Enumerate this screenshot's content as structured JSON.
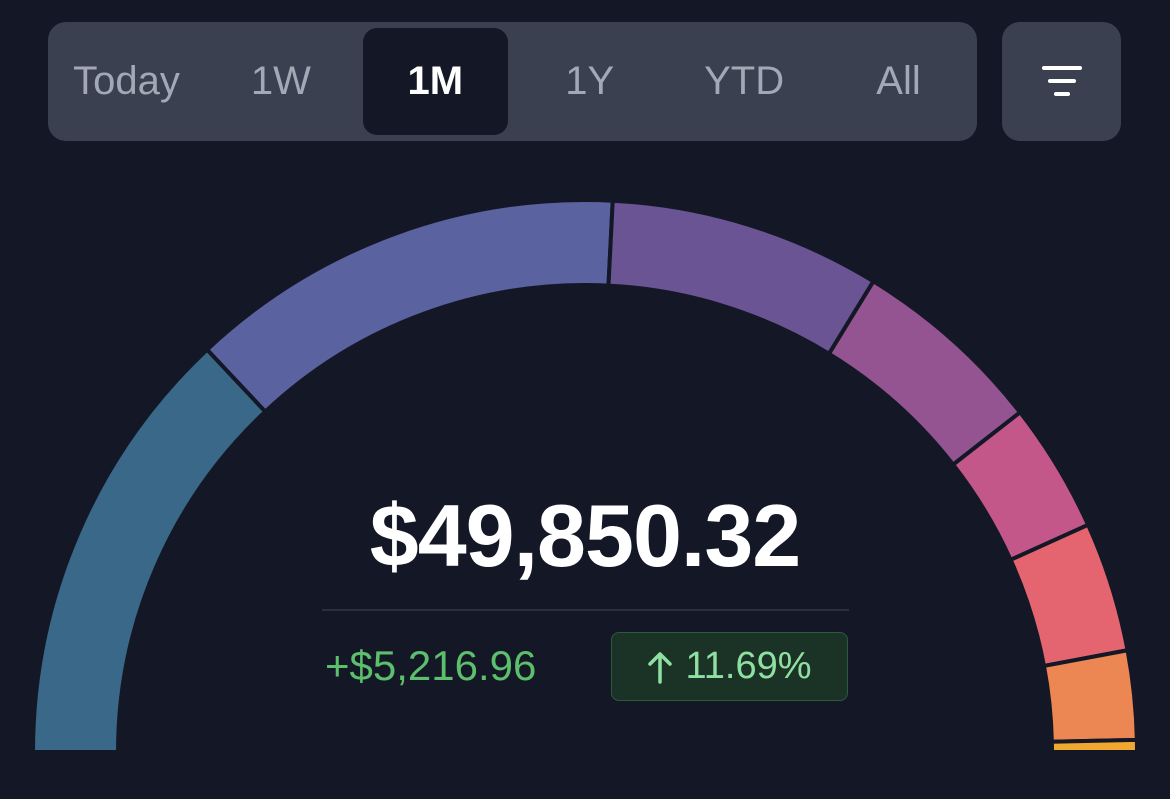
{
  "tabs": [
    {
      "label": "Today",
      "active": false
    },
    {
      "label": "1W",
      "active": false
    },
    {
      "label": "1M",
      "active": true
    },
    {
      "label": "1Y",
      "active": false
    },
    {
      "label": "YTD",
      "active": false
    },
    {
      "label": "All",
      "active": false
    }
  ],
  "total": "$49,850.32",
  "change": "+$5,216.96",
  "change_percent": "11.69%",
  "chart_data": {
    "type": "gauge",
    "values": [
      26.0,
      25.6,
      15.9,
      11.4,
      7.6,
      7.6,
      5.2,
      0.7
    ],
    "colors": [
      "#3a6889",
      "#5a62a0",
      "#6a5494",
      "#945391",
      "#c3578a",
      "#e4656f",
      "#ec8652",
      "#f0a830"
    ]
  }
}
